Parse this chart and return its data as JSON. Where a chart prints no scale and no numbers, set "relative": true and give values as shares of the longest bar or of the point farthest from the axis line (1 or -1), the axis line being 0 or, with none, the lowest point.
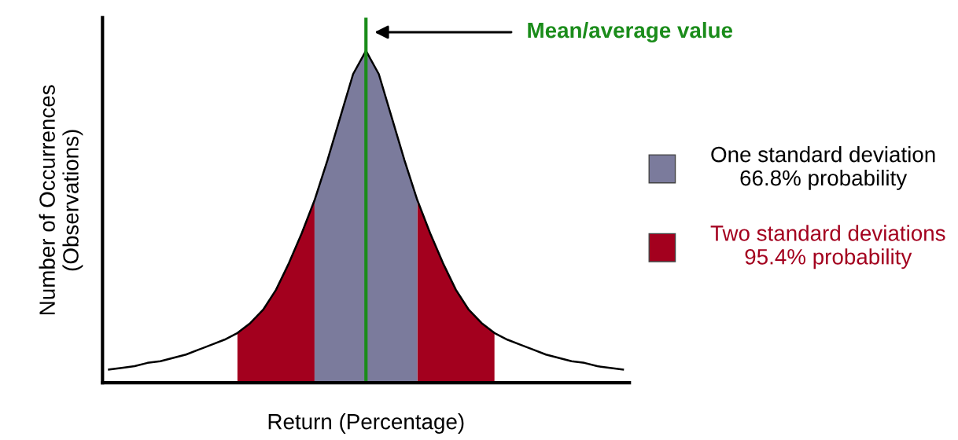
{
  "chart_data": {
    "type": "area",
    "relative": true,
    "xlabel": "Return (Percentage)",
    "ylabel": "Number of Occurrences\n(Observations)",
    "categories": [
      null,
      null,
      null,
      null,
      null,
      null,
      null,
      null,
      null,
      null,
      null,
      null,
      null,
      null,
      null,
      null,
      null,
      null,
      null,
      null,
      null,
      null,
      null,
      null,
      null,
      null,
      null,
      null,
      null,
      null,
      null,
      null,
      null,
      null,
      null,
      null,
      null,
      null,
      null,
      null,
      null
    ],
    "series": [
      {
        "name": "Two standard deviations\n95.4% probability",
        "color": "#a3001e",
        "values": [
          null,
          null,
          null,
          null,
          null,
          null,
          null,
          null,
          null,
          null,
          0.15,
          0.18,
          0.22,
          0.28,
          0.36,
          0.45,
          0.55,
          null,
          null,
          null,
          null,
          null,
          null,
          null,
          0.55,
          0.45,
          0.36,
          0.28,
          0.22,
          0.18,
          0.15,
          null,
          null,
          null,
          null,
          null,
          null,
          null,
          null,
          null,
          null
        ]
      },
      {
        "name": "One standard deviation\n66.8% probability",
        "color": "#7b7b9c",
        "values": [
          null,
          null,
          null,
          null,
          null,
          null,
          null,
          null,
          null,
          null,
          null,
          null,
          null,
          null,
          null,
          null,
          0.55,
          0.67,
          0.8,
          0.93,
          1.0,
          0.93,
          0.8,
          0.67,
          0.55,
          null,
          null,
          null,
          null,
          null,
          null,
          null,
          null,
          null,
          null,
          null,
          null,
          null,
          null,
          null,
          null
        ]
      },
      {
        "type": "line",
        "color": "#000000",
        "values": [
          0.04,
          0.045,
          0.05,
          0.06,
          0.065,
          0.075,
          0.085,
          0.1,
          0.115,
          0.13,
          0.15,
          0.18,
          0.22,
          0.28,
          0.36,
          0.45,
          0.55,
          0.67,
          0.8,
          0.93,
          1.0,
          0.93,
          0.8,
          0.67,
          0.55,
          0.45,
          0.36,
          0.28,
          0.22,
          0.18,
          0.15,
          0.13,
          0.115,
          0.1,
          0.085,
          0.075,
          0.065,
          0.06,
          0.05,
          0.045,
          0.04
        ]
      }
    ],
    "annotations": [
      "Mean/average value"
    ],
    "legend": "right",
    "tick_labels": false
  }
}
